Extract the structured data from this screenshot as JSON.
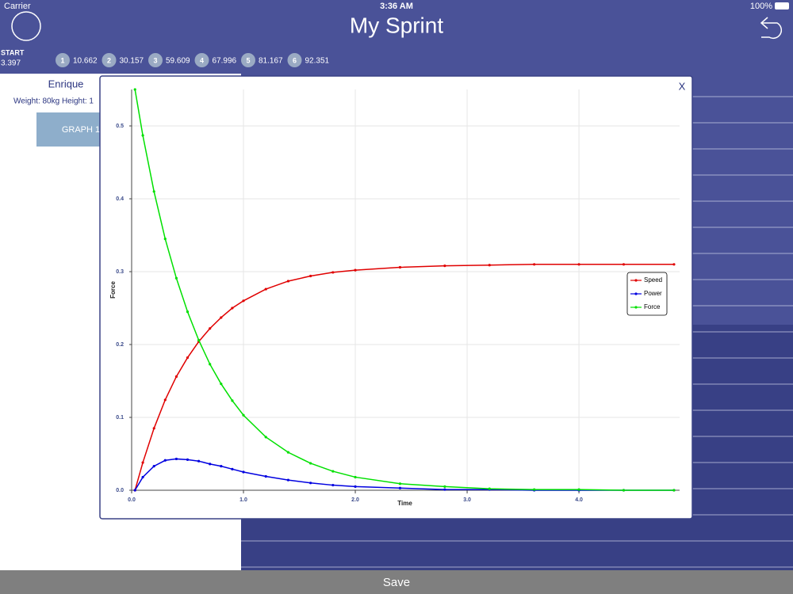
{
  "status_bar": {
    "carrier": "Carrier",
    "time": "3:36 AM",
    "battery": "100%"
  },
  "header": {
    "title": "My Sprint"
  },
  "splits": {
    "start_label": "START",
    "start_value": "3.397",
    "items": [
      {
        "index": "1",
        "value": "10.662"
      },
      {
        "index": "2",
        "value": "30.157"
      },
      {
        "index": "3",
        "value": "59.609"
      },
      {
        "index": "4",
        "value": "67.996"
      },
      {
        "index": "5",
        "value": "81.167"
      },
      {
        "index": "6",
        "value": "92.351"
      }
    ]
  },
  "athlete": {
    "name": "Enrique",
    "details": "Weight: 80kg   Height: 1"
  },
  "button": "GRAPH 1",
  "footer": {
    "save": "Save"
  },
  "modal": {
    "close": "X"
  },
  "chart_data": {
    "type": "line",
    "xlabel": "Time",
    "ylabel": "Force",
    "x": [
      0.03,
      0.1,
      0.2,
      0.3,
      0.4,
      0.5,
      0.6,
      0.7,
      0.8,
      0.9,
      1.0,
      1.2,
      1.4,
      1.6,
      1.8,
      2.0,
      2.4,
      2.8,
      3.2,
      3.6,
      4.0,
      4.4,
      4.85
    ],
    "series": [
      {
        "name": "Speed",
        "color": "#e00000",
        "values": [
          0,
          0.038,
          0.085,
          0.124,
          0.156,
          0.182,
          0.204,
          0.222,
          0.237,
          0.25,
          0.26,
          0.276,
          0.287,
          0.294,
          0.299,
          0.302,
          0.306,
          0.308,
          0.309,
          0.31,
          0.31,
          0.31,
          0.31
        ]
      },
      {
        "name": "Power",
        "color": "#0000e0",
        "values": [
          0,
          0.018,
          0.033,
          0.041,
          0.043,
          0.042,
          0.04,
          0.036,
          0.033,
          0.029,
          0.025,
          0.019,
          0.014,
          0.01,
          0.007,
          0.005,
          0.003,
          0.001,
          0.001,
          0,
          0,
          0,
          0
        ]
      },
      {
        "name": "Force",
        "color": "#00e000",
        "values": [
          0.55,
          0.487,
          0.41,
          0.345,
          0.291,
          0.245,
          0.206,
          0.173,
          0.146,
          0.123,
          0.103,
          0.073,
          0.052,
          0.037,
          0.026,
          0.018,
          0.009,
          0.005,
          0.002,
          0.001,
          0.001,
          0,
          0
        ]
      }
    ],
    "xlim": [
      0,
      4.9
    ],
    "ylim": [
      0,
      0.55
    ],
    "xticks": [
      {
        "value": 0,
        "label": "0.0"
      },
      {
        "value": 1,
        "label": "1.0"
      },
      {
        "value": 2,
        "label": "2.0"
      },
      {
        "value": 3,
        "label": "3.0"
      },
      {
        "value": 4,
        "label": "4.0"
      }
    ],
    "yticks": [
      {
        "value": 0,
        "label": "0.0"
      },
      {
        "value": 0.1,
        "label": "0.1"
      },
      {
        "value": 0.2,
        "label": "0.2"
      },
      {
        "value": 0.3,
        "label": "0.3"
      },
      {
        "value": 0.4,
        "label": "0.4"
      },
      {
        "value": 0.5,
        "label": "0.5"
      }
    ],
    "grid": true,
    "legend_position": "right"
  }
}
